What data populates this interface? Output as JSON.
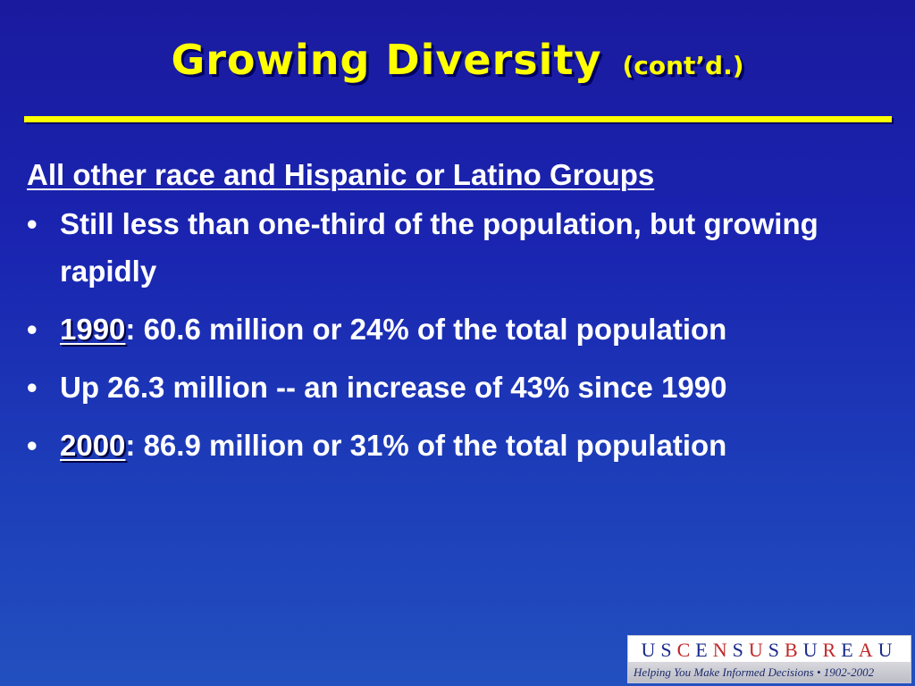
{
  "slide": {
    "title": "Growing Diversity",
    "title_suffix": "(cont’d.)",
    "heading": "All other race and Hispanic or Latino Groups",
    "bullets": [
      {
        "year": "",
        "text": "Still less than one-third of the population, but growing rapidly"
      },
      {
        "year": "1990",
        "text": ":  60.6 million or 24% of the total population"
      },
      {
        "year": "",
        "text": "Up 26.3 million -- an increase of 43% since 1990"
      },
      {
        "year": "2000",
        "text": ":  86.9 million or 31% of the total population"
      }
    ],
    "bullet_glyph": "•"
  },
  "logo": {
    "letters": [
      "U",
      "S",
      "C",
      "E",
      "N",
      "S",
      "U",
      "S",
      "B",
      "U",
      "R",
      "E",
      "A",
      "U"
    ],
    "tagline": "Helping You Make Informed Decisions • 1902-2002"
  },
  "colors": {
    "background_top": "#1a1a9e",
    "background_bottom": "#2250bf",
    "title": "#ffff00",
    "rule": "#ffff00",
    "body_text": "#ffffff"
  }
}
